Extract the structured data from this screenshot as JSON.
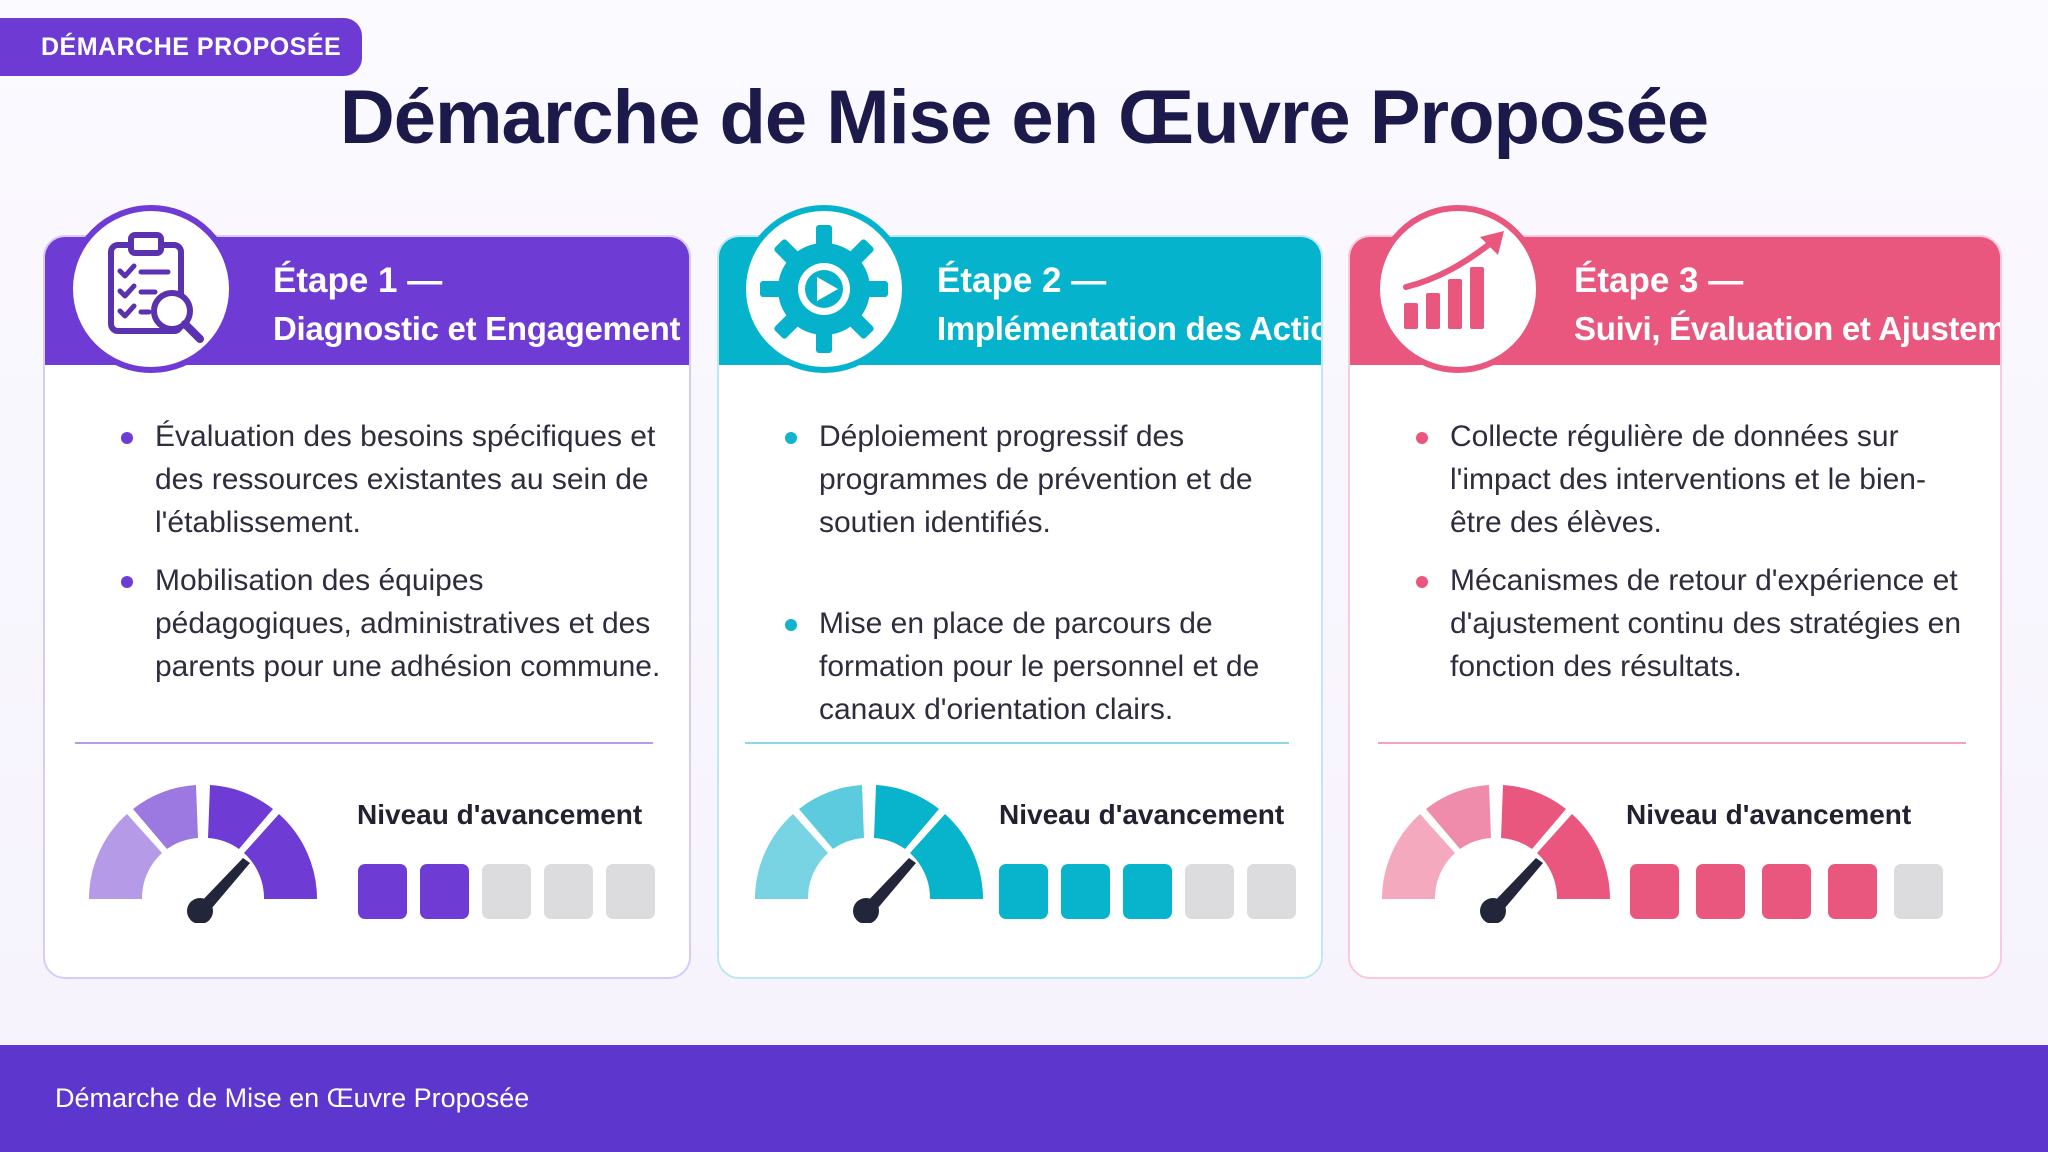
{
  "header": {
    "tag_label": "DÉMARCHE PROPOSÉE",
    "title": "Démarche de Mise en Œuvre Proposée"
  },
  "steps": [
    {
      "step_label": "Étape 1 —",
      "title": "Diagnostic et Engagement",
      "icon": "clipboard-search-icon",
      "accent": "#6e3bd4",
      "bullets": [
        "Évaluation des besoins spécifiques et des ressources existantes au sein de l'établissement.",
        "Mobilisation des équipes pédagogiques, administratives et des parents pour une adhésion commune."
      ],
      "level_label": "Niveau d'avancement",
      "progress": {
        "filled": 2,
        "total": 5
      }
    },
    {
      "step_label": "Étape 2 —",
      "title": "Implémentation des Actions",
      "icon": "gear-play-icon",
      "accent": "#05b4cc",
      "bullets": [
        "Déploiement progressif des programmes de prévention et de soutien identifiés.",
        "Mise en place de parcours de formation pour le personnel et de canaux d'orientation clairs."
      ],
      "level_label": "Niveau d'avancement",
      "progress": {
        "filled": 3,
        "total": 5
      }
    },
    {
      "step_label": "Étape 3 —",
      "title": "Suivi, Évaluation et Ajustement",
      "icon": "growth-chart-icon",
      "accent": "#e9567e",
      "bullets": [
        "Collecte régulière de données sur l'impact des interventions et le bien-être des élèves.",
        "Mécanismes de retour d'expérience et d'ajustement continu des stratégies en fonction des résultats."
      ],
      "level_label": "Niveau d'avancement",
      "progress": {
        "filled": 4,
        "total": 5
      }
    }
  ],
  "footer": {
    "text": "Démarche de Mise en Œuvre Proposée"
  }
}
